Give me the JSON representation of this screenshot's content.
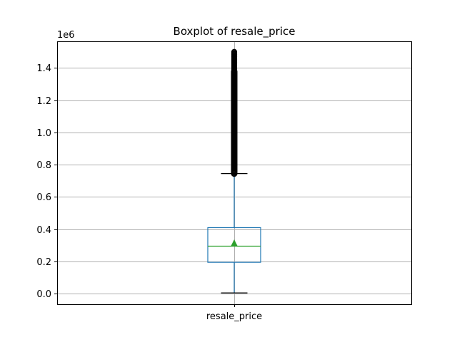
{
  "chart_data": {
    "type": "boxplot",
    "title": "Boxplot of resale_price",
    "xlabel": "",
    "ylabel": "",
    "y_scale_label": "1e6",
    "categories": [
      "resale_price"
    ],
    "ylim": [
      -0.065,
      1.565
    ],
    "yticks": [
      0.0,
      0.2,
      0.4,
      0.6,
      0.8,
      1.0,
      1.2,
      1.4
    ],
    "ytick_labels": [
      "0.0",
      "0.2",
      "0.4",
      "0.6",
      "0.8",
      "1.0",
      "1.2",
      "1.4"
    ],
    "grid": true,
    "box": {
      "whisker_low": 0.005,
      "q1": 0.195,
      "median": 0.295,
      "q3": 0.41,
      "whisker_high": 0.745,
      "mean": 0.315,
      "outliers_min": 0.745,
      "outliers_max": 1.5
    },
    "colors": {
      "box": "#1f77b4",
      "median": "#2ca02c",
      "mean": "#2ca02c",
      "caps": "#000000",
      "grid": "#b0b0b0"
    }
  }
}
